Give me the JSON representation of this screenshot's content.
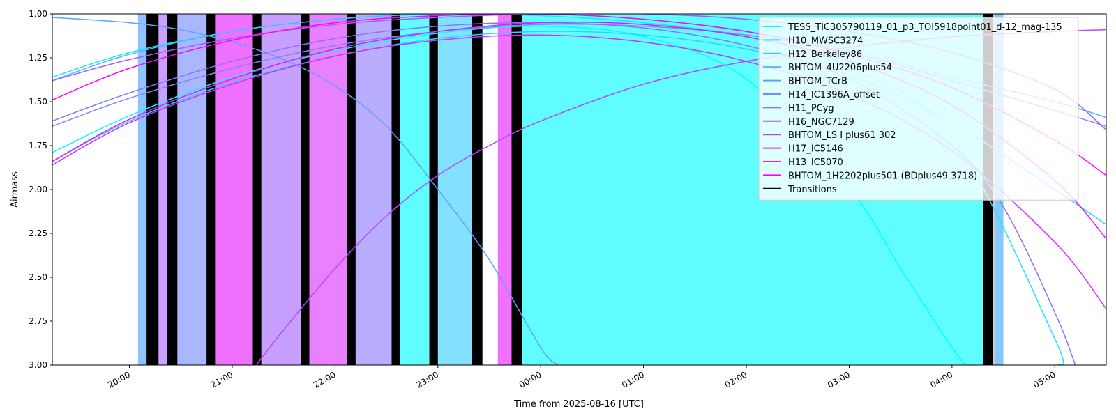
{
  "chart_data": {
    "type": "line",
    "xlabel": "Time from 2025-08-16 [UTC]",
    "ylabel": "Airmass",
    "xlim": [
      "19:15",
      "05:30"
    ],
    "ylim": [
      3.0,
      1.0
    ],
    "y_inverted": true,
    "grid": false,
    "legend_placement": "top-right",
    "x_ticks": [
      "20:00",
      "21:00",
      "22:00",
      "23:00",
      "00:00",
      "01:00",
      "02:00",
      "03:00",
      "04:00",
      "05:00"
    ],
    "y_ticks": [
      "1.00",
      "1.25",
      "1.50",
      "1.75",
      "2.00",
      "2.25",
      "2.50",
      "2.75",
      "3.00"
    ],
    "series": [
      {
        "name": "TESS_TIC305790119_01_p3_TOI5918point01_d-12_mag-135",
        "color": "#00ffff",
        "x": [
          "19:15",
          "20:00",
          "21:00",
          "22:00",
          "23:00",
          "00:00",
          "01:00",
          "02:00",
          "03:00",
          "03:30",
          "04:00",
          "04:08"
        ],
        "y": [
          1.79,
          1.58,
          1.36,
          1.21,
          1.11,
          1.07,
          1.13,
          1.37,
          1.99,
          2.45,
          2.9,
          3.0
        ]
      },
      {
        "name": "H10_MWSC3274",
        "color": "#17e8ff",
        "x": [
          "19:15",
          "20:00",
          "21:00",
          "22:00",
          "23:00",
          "00:00",
          "01:00",
          "02:00",
          "03:00",
          "04:00",
          "05:00",
          "05:02"
        ],
        "y": [
          1.36,
          1.22,
          1.1,
          1.03,
          1.0,
          1.01,
          1.05,
          1.13,
          1.3,
          1.7,
          2.85,
          3.0
        ]
      },
      {
        "name": "H12_Berkeley86",
        "color": "#2ed1ff",
        "x": [
          "19:15",
          "20:00",
          "21:00",
          "22:00",
          "23:00",
          "00:00",
          "01:00",
          "02:00",
          "03:00",
          "04:00",
          "05:00",
          "05:30"
        ],
        "y": [
          1.84,
          1.61,
          1.39,
          1.24,
          1.14,
          1.1,
          1.12,
          1.2,
          1.35,
          1.62,
          2.0,
          2.2
        ]
      },
      {
        "name": "BHTOM_4U2206plus54",
        "color": "#46b9ff",
        "x": [
          "19:15",
          "20:00",
          "21:00",
          "22:00",
          "23:00",
          "00:00",
          "01:00",
          "02:00",
          "03:00",
          "04:00",
          "05:00",
          "05:30"
        ],
        "y": [
          1.38,
          1.23,
          1.1,
          1.03,
          1.0,
          1.0,
          1.03,
          1.1,
          1.21,
          1.36,
          1.5,
          1.59
        ]
      },
      {
        "name": "BHTOM_TCrB",
        "color": "#5da2ff",
        "x": [
          "19:15",
          "20:00",
          "20:30",
          "21:00",
          "21:30",
          "22:00",
          "22:30",
          "23:00",
          "23:30",
          "00:00",
          "00:10"
        ],
        "y": [
          1.02,
          1.05,
          1.09,
          1.16,
          1.26,
          1.41,
          1.64,
          2.0,
          2.4,
          2.9,
          3.0
        ]
      },
      {
        "name": "H14_IC1396A_offset",
        "color": "#748bff",
        "x": [
          "19:15",
          "20:00",
          "21:00",
          "22:00",
          "23:00",
          "00:00",
          "01:00",
          "02:00",
          "03:00",
          "04:00",
          "05:00",
          "05:30"
        ],
        "y": [
          1.64,
          1.48,
          1.31,
          1.18,
          1.1,
          1.06,
          1.07,
          1.12,
          1.22,
          1.38,
          1.55,
          1.64
        ]
      },
      {
        "name": "H11_PCyg",
        "color": "#8b73ff",
        "x": [
          "19:15",
          "20:00",
          "21:00",
          "22:00",
          "23:00",
          "00:00",
          "01:00",
          "02:00",
          "03:00",
          "04:00",
          "04:30",
          "05:00",
          "05:12"
        ],
        "y": [
          1.61,
          1.45,
          1.27,
          1.14,
          1.07,
          1.05,
          1.08,
          1.18,
          1.37,
          1.75,
          2.1,
          2.7,
          3.0
        ]
      },
      {
        "name": "H16_NGC7129",
        "color": "#a25cff",
        "x": [
          "19:15",
          "20:00",
          "21:00",
          "22:00",
          "23:00",
          "00:00",
          "01:00",
          "02:00",
          "03:00",
          "04:00",
          "05:00",
          "05:30"
        ],
        "y": [
          1.38,
          1.26,
          1.14,
          1.06,
          1.02,
          1.0,
          1.0,
          1.03,
          1.1,
          1.22,
          1.43,
          1.66
        ]
      },
      {
        "name": "BHTOM_LS I plus61 302",
        "color": "#b945ff",
        "x": [
          "21:14",
          "21:30",
          "22:00",
          "22:30",
          "23:00",
          "23:30",
          "00:00",
          "01:00",
          "02:00",
          "03:00",
          "04:00",
          "05:00",
          "05:30"
        ],
        "y": [
          3.0,
          2.8,
          2.45,
          2.15,
          1.92,
          1.75,
          1.61,
          1.4,
          1.27,
          1.19,
          1.13,
          1.1,
          1.09
        ]
      },
      {
        "name": "H17_IC5146",
        "color": "#d12eff",
        "x": [
          "19:15",
          "20:00",
          "21:00",
          "22:00",
          "23:00",
          "00:00",
          "01:00",
          "02:00",
          "03:00",
          "04:00",
          "05:00",
          "05:30"
        ],
        "y": [
          1.86,
          1.62,
          1.4,
          1.24,
          1.15,
          1.12,
          1.16,
          1.27,
          1.46,
          1.78,
          2.3,
          2.68
        ]
      },
      {
        "name": "H13_IC5070",
        "color": "#e817ff",
        "x": [
          "19:15",
          "20:00",
          "21:00",
          "22:00",
          "23:00",
          "00:00",
          "01:00",
          "02:00",
          "03:00",
          "04:00",
          "05:00",
          "05:30"
        ],
        "y": [
          1.84,
          1.6,
          1.37,
          1.2,
          1.1,
          1.05,
          1.06,
          1.13,
          1.27,
          1.52,
          1.95,
          2.28
        ]
      },
      {
        "name": "BHTOM_1H2202plus501 (BDplus49 3718)",
        "color": "#ff00ff",
        "x": [
          "19:15",
          "20:00",
          "21:00",
          "22:00",
          "23:00",
          "00:00",
          "01:00",
          "02:00",
          "03:00",
          "04:00",
          "05:00",
          "05:30"
        ],
        "y": [
          1.49,
          1.31,
          1.15,
          1.05,
          1.01,
          1.0,
          1.03,
          1.1,
          1.23,
          1.42,
          1.72,
          1.92
        ]
      },
      {
        "name": "Transitions",
        "color": "#000000",
        "x": [],
        "y": []
      }
    ],
    "observation_blocks": [
      {
        "start": "20:05",
        "end": "20:10",
        "color": "#8fc2ff"
      },
      {
        "start": "20:17",
        "end": "20:22",
        "color": "#c9a0ff"
      },
      {
        "start": "20:28",
        "end": "20:45",
        "color": "#aab6ff"
      },
      {
        "start": "20:50",
        "end": "21:12",
        "color": "#f070ff"
      },
      {
        "start": "21:17",
        "end": "21:40",
        "color": "#c7a0ff"
      },
      {
        "start": "21:45",
        "end": "22:07",
        "color": "#e880ff"
      },
      {
        "start": "22:12",
        "end": "22:33",
        "color": "#b9adff"
      },
      {
        "start": "22:38",
        "end": "22:55",
        "color": "#5ffdff"
      },
      {
        "start": "23:00",
        "end": "23:20",
        "color": "#84e0ff"
      },
      {
        "start": "23:35",
        "end": "23:43",
        "color": "#f070ff"
      },
      {
        "start": "23:49",
        "end": "04:18",
        "color": "#5ffdff"
      },
      {
        "start": "04:18",
        "end": "04:25",
        "color": "#cccccc"
      },
      {
        "start": "04:25",
        "end": "04:30",
        "color": "#84c8ff"
      }
    ],
    "transitions": [
      {
        "start": "20:10",
        "end": "20:17"
      },
      {
        "start": "20:22",
        "end": "20:28"
      },
      {
        "start": "20:45",
        "end": "20:50"
      },
      {
        "start": "21:12",
        "end": "21:17"
      },
      {
        "start": "21:40",
        "end": "21:45"
      },
      {
        "start": "22:07",
        "end": "22:12"
      },
      {
        "start": "22:33",
        "end": "22:38"
      },
      {
        "start": "22:55",
        "end": "23:00"
      },
      {
        "start": "23:20",
        "end": "23:26"
      },
      {
        "start": "23:43",
        "end": "23:49"
      },
      {
        "start": "04:18",
        "end": "04:24"
      }
    ]
  }
}
